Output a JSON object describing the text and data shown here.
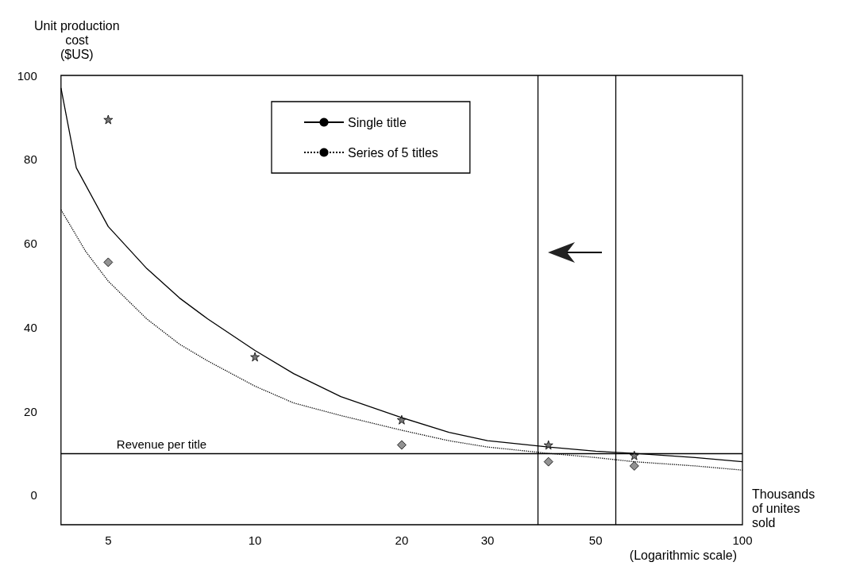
{
  "chart_data": {
    "type": "line",
    "ylabel": "Unit production\ncost\n($US)",
    "xlabel": "Thousands\nof unites\nsold",
    "annotations": [
      "(Logarithmic scale)"
    ],
    "log": "x",
    "xlim": [
      4,
      100
    ],
    "xticks": [
      5,
      10,
      20,
      30,
      50,
      100
    ],
    "ylim": [
      -7,
      100
    ],
    "yticks": [
      0,
      20,
      40,
      60,
      80,
      100
    ],
    "grid": false,
    "legend": "top",
    "series": [
      {
        "name": "Single title",
        "color": "#000000",
        "line_style": "solid",
        "marker": "none",
        "x": [
          4,
          4.3,
          5,
          6,
          7,
          8,
          10,
          12,
          15,
          20,
          25,
          30,
          40,
          50,
          60,
          80,
          100
        ],
        "values": [
          97,
          78,
          64,
          54,
          47,
          42,
          34.5,
          29,
          23.5,
          18.5,
          15,
          13,
          11.5,
          10.5,
          10,
          9,
          8
        ]
      },
      {
        "name": "Series of 5 titles",
        "color": "#000000",
        "line_style": "dotted",
        "marker": "none",
        "x": [
          4,
          4.5,
          5,
          6,
          7,
          8,
          10,
          12,
          15,
          20,
          25,
          30,
          40,
          50,
          60,
          80,
          100
        ],
        "values": [
          68,
          58,
          51,
          42,
          36,
          32,
          26,
          22,
          19,
          15.5,
          13,
          11.5,
          10,
          9,
          8,
          7,
          6
        ]
      },
      {
        "type": "scatter",
        "color": "#555555",
        "marker": "star",
        "x": [
          5,
          10,
          20,
          40,
          60
        ],
        "values": [
          89.5,
          33,
          18,
          12,
          9.5
        ]
      },
      {
        "type": "scatter",
        "color": "#777777",
        "marker": "diamond",
        "x": [
          5,
          20,
          40,
          60
        ],
        "values": [
          55.5,
          12,
          8,
          7
        ]
      }
    ],
    "ref_lines": [
      {
        "axis": "y",
        "value": 10,
        "label": "Revenue per title"
      },
      {
        "axis": "x",
        "value": 38,
        "label": null
      },
      {
        "axis": "x",
        "value": 55,
        "label": null
      }
    ]
  }
}
